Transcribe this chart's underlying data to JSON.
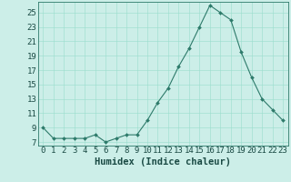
{
  "x": [
    0,
    1,
    2,
    3,
    4,
    5,
    6,
    7,
    8,
    9,
    10,
    11,
    12,
    13,
    14,
    15,
    16,
    17,
    18,
    19,
    20,
    21,
    22,
    23
  ],
  "y": [
    9,
    7.5,
    7.5,
    7.5,
    7.5,
    8,
    7,
    7.5,
    8,
    8,
    10,
    12.5,
    14.5,
    17.5,
    20,
    23,
    26,
    25,
    24,
    19.5,
    16,
    13,
    11.5,
    10
  ],
  "line_color": "#2d7a6a",
  "marker_color": "#2d7a6a",
  "bg_color": "#cceee8",
  "grid_color": "#99ddcc",
  "xlabel": "Humidex (Indice chaleur)",
  "xlim": [
    -0.5,
    23.5
  ],
  "ylim": [
    6.5,
    26.5
  ],
  "yticks": [
    7,
    9,
    11,
    13,
    15,
    17,
    19,
    21,
    23,
    25
  ],
  "xticks": [
    0,
    1,
    2,
    3,
    4,
    5,
    6,
    7,
    8,
    9,
    10,
    11,
    12,
    13,
    14,
    15,
    16,
    17,
    18,
    19,
    20,
    21,
    22,
    23
  ],
  "tick_fontsize": 6.5,
  "xlabel_fontsize": 7.5
}
